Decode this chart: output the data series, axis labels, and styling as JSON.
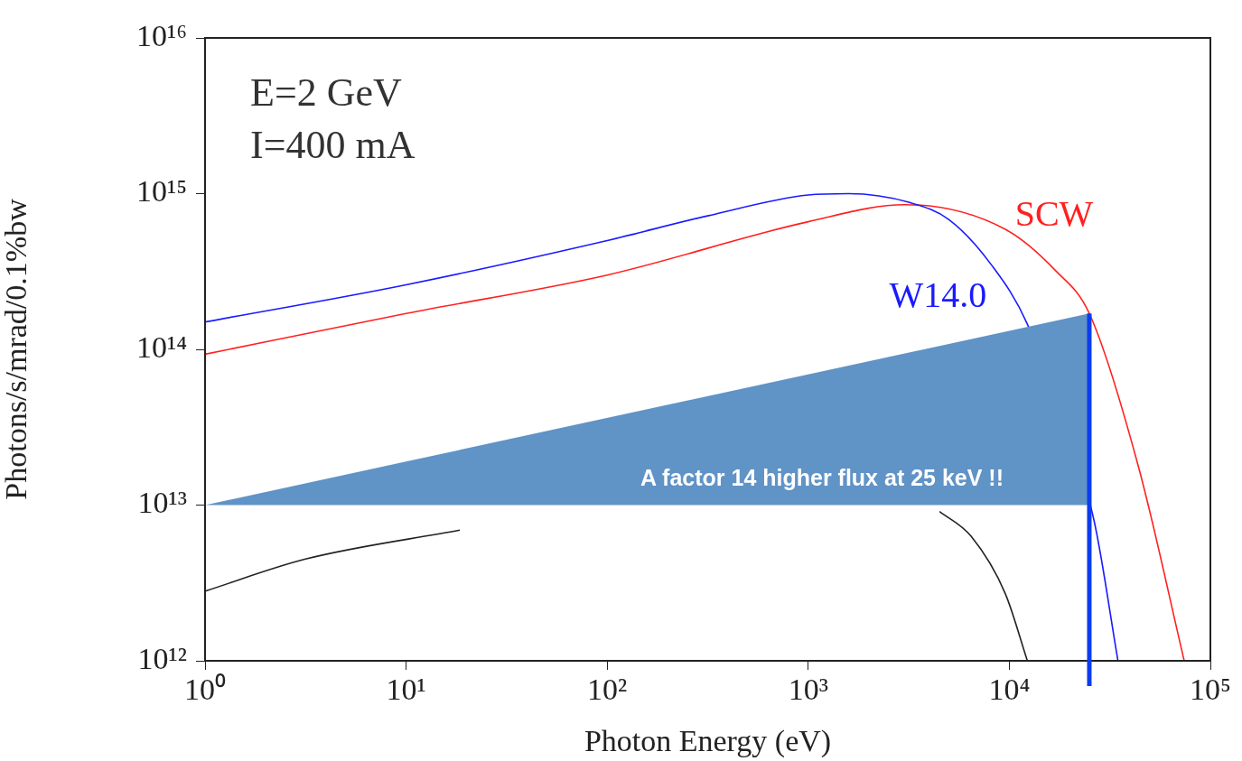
{
  "chart_data": {
    "type": "line",
    "xlabel": "Photon Energy (eV)",
    "ylabel": "Photons/s/mrad/0.1%bw",
    "log": "xy",
    "grid": false,
    "legend": false,
    "marker": "none",
    "line_style": "solid",
    "xlim": [
      1,
      100000
    ],
    "xticks": [
      {
        "value": 1,
        "label": "10⁰"
      },
      {
        "value": 10,
        "label": "10¹"
      },
      {
        "value": 100,
        "label": "10²"
      },
      {
        "value": 1000,
        "label": "10³"
      },
      {
        "value": 10000,
        "label": "10⁴"
      },
      {
        "value": 100000,
        "label": "10⁵"
      }
    ],
    "ylim": [
      1000000000000.0,
      1e+16
    ],
    "yticks": [
      {
        "value": 1000000000000.0,
        "label": "10¹²"
      },
      {
        "value": 10000000000000.0,
        "label": "10¹³"
      },
      {
        "value": 100000000000000.0,
        "label": "10¹⁴"
      },
      {
        "value": 1000000000000000.0,
        "label": "10¹⁵"
      },
      {
        "value": 1e+16,
        "label": "10¹⁶"
      }
    ],
    "series": [
      {
        "name": "W14.0",
        "color": "#1a1aff",
        "x": [
          1,
          10,
          100,
          316,
          1000,
          1585,
          3162,
          5012,
          8128,
          12300,
          26300,
          34700
        ],
        "values": [
          150000000000000.0,
          260000000000000.0,
          500000000000000.0,
          720000000000000.0,
          980000000000000.0,
          1000000000000000.0,
          880000000000000.0,
          680000000000000.0,
          350000000000000.0,
          145000000000000.0,
          8100000000000.0,
          1000000000000.0
        ]
      },
      {
        "name": "SCW",
        "color": "#ff2020",
        "x": [
          1,
          10,
          100,
          1000,
          3020,
          9550,
          17000,
          25000,
          43700,
          74100
        ],
        "values": [
          93000000000000.0,
          170000000000000.0,
          300000000000000.0,
          660000000000000.0,
          850000000000000.0,
          590000000000000.0,
          320000000000000.0,
          170000000000000.0,
          18000000000000.0,
          1000000000000.0
        ]
      },
      {
        "color": "#222222",
        "x": [
          1,
          3.16,
          18.5,
          100,
          4500,
          6457,
          9550,
          12300
        ],
        "values": [
          2800000000000.0,
          4500000000000.0,
          6900000000000.0,
          null,
          9100000000000.0,
          6300000000000.0,
          2700000000000.0,
          1000000000000.0
        ]
      }
    ],
    "ref_lines": [
      {
        "axis": "x",
        "value": 25000,
        "color": "#0a3cf0"
      }
    ],
    "annotations": [
      "E=2 GeV",
      "I=400 mA",
      {
        "text": "A factor 14 higher flux at 25 keV !!",
        "x": 25000,
        "y": 10000000000000.0
      }
    ]
  }
}
